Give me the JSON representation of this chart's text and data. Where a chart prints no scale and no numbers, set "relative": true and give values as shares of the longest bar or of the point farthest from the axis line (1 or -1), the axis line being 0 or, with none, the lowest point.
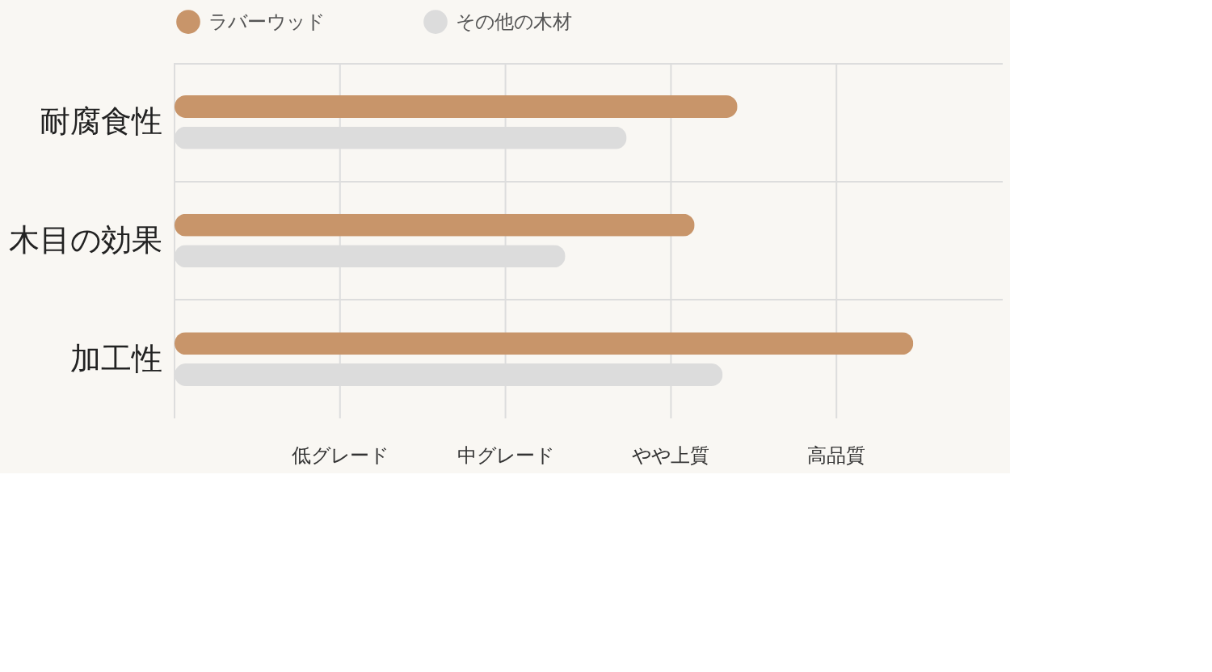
{
  "chart_data": {
    "type": "bar",
    "orientation": "horizontal",
    "relative": true,
    "categories": [
      "耐腐食性",
      "木目の効果",
      "加工性"
    ],
    "series": [
      {
        "name": "ラバーウッド",
        "color": "#c8956a",
        "values": [
          0.762,
          0.704,
          1
        ]
      },
      {
        "name": "その他の木材",
        "color": "#dcdcdc",
        "values": [
          0.612,
          0.529,
          0.742
        ]
      }
    ],
    "annotations": [
      "低グレード",
      "中グレード",
      "やや上質",
      "高品質"
    ],
    "grid": true,
    "legend": "top"
  }
}
